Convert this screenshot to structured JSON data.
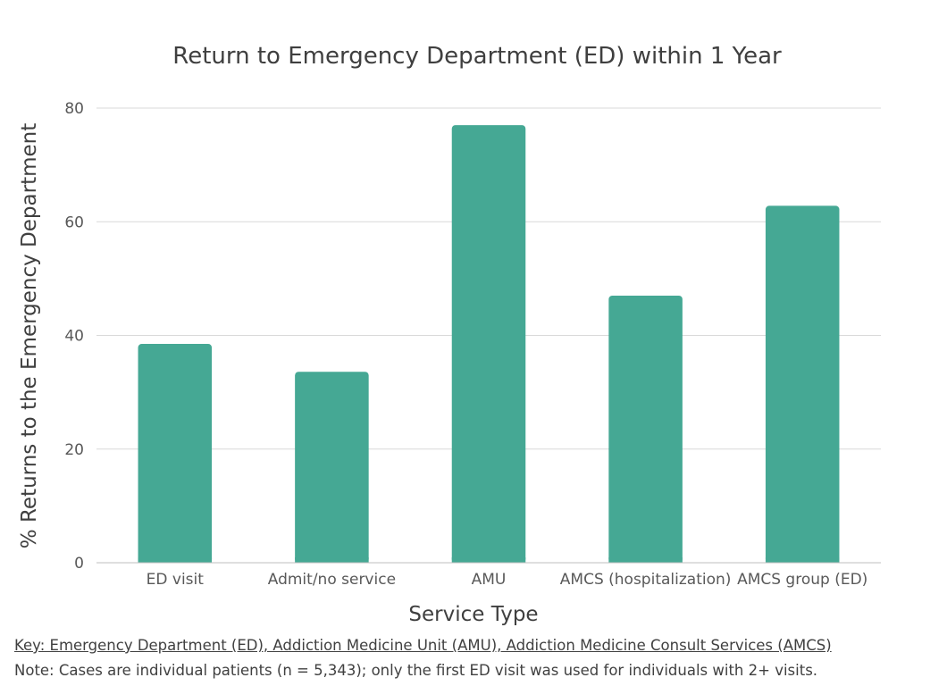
{
  "chart_data": {
    "type": "bar",
    "title": "Return to Emergency Department (ED) within 1 Year",
    "xlabel": "Service Type",
    "ylabel": "% Returns to the Emergency Department",
    "categories": [
      "ED visit",
      "Admit/no service",
      "AMU",
      "AMCS (hospitalization)",
      "AMCS group (ED)"
    ],
    "values": [
      38.5,
      33.6,
      77.0,
      47.0,
      62.8
    ],
    "ylim": [
      0,
      80
    ],
    "yticks": [
      0,
      20,
      40,
      60,
      80
    ],
    "grid": true,
    "legend": "none",
    "bar_color": "#45a894",
    "grid_color": "#d9d9d9",
    "axis_color": "#bfbfbf"
  },
  "notes": {
    "key": "Key: Emergency Department (ED), Addiction Medicine Unit (AMU), Addiction Medicine Consult Services (AMCS)",
    "cases": "Note: Cases are individual patients (n = 5,343); only the first ED visit was used for individuals with 2+ visits."
  }
}
